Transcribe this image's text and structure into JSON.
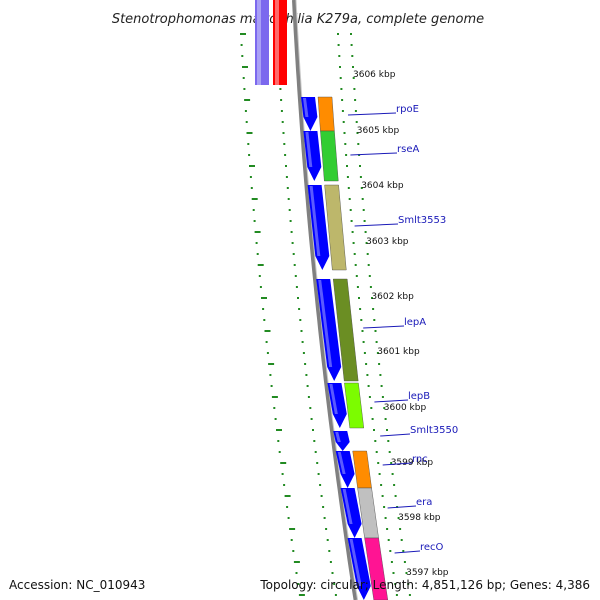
{
  "title": "Stenotrophomonas maltophilia K279a, complete genome",
  "footer": {
    "accession": "Accession: NC_010943",
    "topology": "Topology: circular; Length: 4,851,126 bp; Genes: 4,386"
  },
  "ticks": [
    {
      "label": "3606 kbp"
    },
    {
      "label": "3605 kbp"
    },
    {
      "label": "3604 kbp"
    },
    {
      "label": "3603 kbp"
    },
    {
      "label": "3602 kbp"
    },
    {
      "label": "3601 kbp"
    },
    {
      "label": "3600 kbp"
    },
    {
      "label": "3599 kbp"
    },
    {
      "label": "3598 kbp"
    },
    {
      "label": "3597 kbp"
    }
  ],
  "genes": [
    {
      "name": "rpoE",
      "color": "#ff8c00"
    },
    {
      "name": "rseA",
      "color": "#32cd32"
    },
    {
      "name": "Smlt3553",
      "color": "#bdb76b"
    },
    {
      "name": "lepA",
      "color": "#6b8e23"
    },
    {
      "name": "lepB",
      "color": "#7cfc00"
    },
    {
      "name": "Smlt3550",
      "color": ""
    },
    {
      "name": "rnc",
      "color": "#ff8c00"
    },
    {
      "name": "era",
      "color": "#c0c0c0"
    },
    {
      "name": "recO",
      "color": "#ff1493"
    }
  ],
  "colors": {
    "forward_strand": "#0000ff",
    "slate_block": "#7b68ee",
    "red_block": "#ff0000",
    "backbone": "#808080",
    "tick_dots": "#228b22",
    "label_color": "#1a1ab8"
  }
}
